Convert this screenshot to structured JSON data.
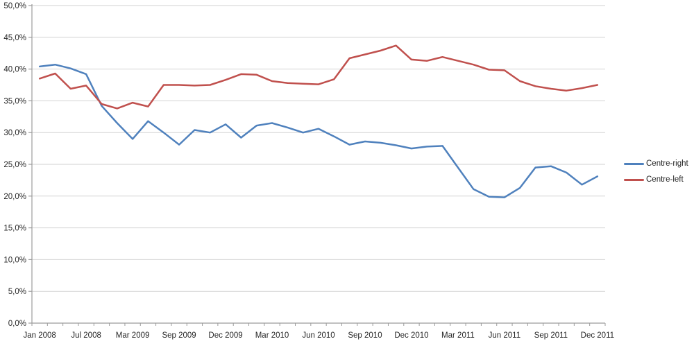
{
  "chart_data": {
    "type": "line",
    "title": "",
    "xlabel": "",
    "ylabel": "",
    "n_points": 37,
    "label_every": 3,
    "x_tick_labels": [
      "Jan 2008",
      "Jul 2008",
      "Mar 2009",
      "Sep 2009",
      "Dec 2009",
      "Mar 2010",
      "Jun 2010",
      "Sep 2010",
      "Dec 2010",
      "Mar 2011",
      "Jun 2011",
      "Sep 2011",
      "Dec 2011"
    ],
    "y_axis": {
      "min": 0,
      "max": 50,
      "step": 5,
      "tick_labels_top_down": [
        "50,0%",
        "45,0%",
        "40,0%",
        "35,0%",
        "30,0%",
        "25,0%",
        "20,0%",
        "15,0%",
        "10,0%",
        "5,0%",
        "0,0%"
      ]
    },
    "grid": true,
    "legend_position": "right",
    "series": [
      {
        "name": "Centre-right",
        "color": "#4F81BD",
        "values": [
          40.4,
          40.7,
          40.1,
          39.2,
          34.2,
          31.5,
          29.0,
          31.8,
          30.0,
          28.1,
          30.4,
          30.0,
          31.3,
          29.2,
          31.1,
          31.5,
          30.8,
          30.0,
          30.6,
          29.4,
          28.1,
          28.6,
          28.4,
          28.0,
          27.5,
          27.8,
          27.9,
          24.5,
          21.1,
          19.9,
          19.8,
          21.3,
          24.5,
          24.7,
          23.7,
          21.8,
          23.1
        ]
      },
      {
        "name": "Centre-left",
        "color": "#C0504D",
        "values": [
          38.5,
          39.3,
          36.9,
          37.4,
          34.5,
          33.8,
          34.7,
          34.1,
          37.5,
          37.5,
          37.4,
          37.5,
          38.3,
          39.2,
          39.1,
          38.1,
          37.8,
          37.7,
          37.6,
          38.4,
          41.7,
          42.3,
          42.9,
          43.7,
          41.5,
          41.3,
          41.9,
          41.3,
          40.7,
          39.9,
          39.8,
          38.1,
          37.3,
          36.9,
          36.6,
          37.0,
          37.5
        ]
      }
    ]
  },
  "colors": {
    "background": "#FFFFFF",
    "gridline": "#D2D2D2",
    "axis": "#9B9B9B",
    "tick": "#9B9B9B",
    "text": "#262626"
  }
}
